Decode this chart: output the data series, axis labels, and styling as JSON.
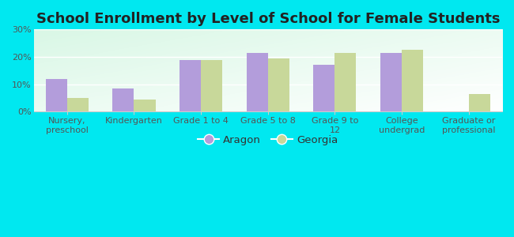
{
  "title": "School Enrollment by Level of School for Female Students",
  "categories": [
    "Nursery,\npreschool",
    "Kindergarten",
    "Grade 1 to 4",
    "Grade 5 to 8",
    "Grade 9 to\n12",
    "College\nundergrad",
    "Graduate or\nprofessional"
  ],
  "aragon_values": [
    12,
    8.5,
    19,
    21.5,
    17,
    21.5,
    0
  ],
  "georgia_values": [
    5,
    4.5,
    19,
    19.5,
    21.5,
    22.5,
    6.5
  ],
  "aragon_color": "#b39ddb",
  "georgia_color": "#c8d89a",
  "background_color": "#00e8f0",
  "ylim": [
    0,
    30
  ],
  "yticks": [
    0,
    10,
    20,
    30
  ],
  "ytick_labels": [
    "0%",
    "10%",
    "20%",
    "30%"
  ],
  "legend_labels": [
    "Aragon",
    "Georgia"
  ],
  "bar_width": 0.32,
  "title_fontsize": 13,
  "tick_fontsize": 8,
  "legend_fontsize": 9.5,
  "grid_color": "#ffffff"
}
